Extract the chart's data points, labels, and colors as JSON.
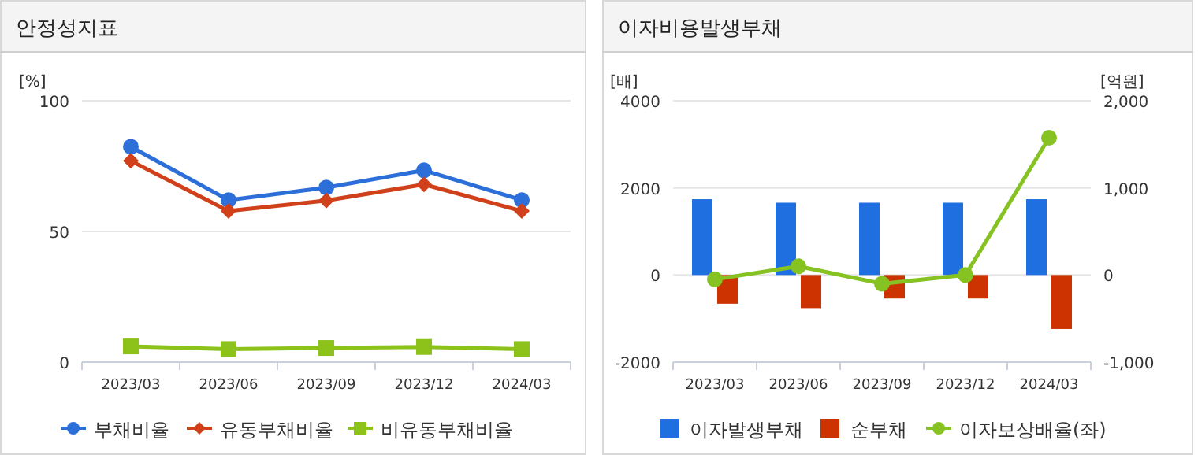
{
  "chart_data": [
    {
      "type": "line",
      "title": "안정성지표",
      "ylabel": "[%]",
      "categories": [
        "2023/03",
        "2023/06",
        "2023/09",
        "2023/12",
        "2024/03"
      ],
      "ylim": [
        0,
        100
      ],
      "yticks": [
        0,
        50,
        100
      ],
      "grid": "y",
      "legend": "bottom",
      "series": [
        {
          "name": "부채비율",
          "color": "#2d6fd9",
          "marker": "circle",
          "values": [
            82.4,
            62,
            66.8,
            73.4,
            62
          ]
        },
        {
          "name": "유동부채비율",
          "color": "#d0401a",
          "marker": "diamond",
          "values": [
            77,
            57.8,
            61.8,
            68,
            57.8
          ]
        },
        {
          "name": "비유동부채비율",
          "color": "#8cc21a",
          "marker": "square",
          "values": [
            6,
            5,
            5.4,
            5.8,
            5
          ]
        }
      ]
    },
    {
      "type": "bar",
      "title": "이자비용발생부채",
      "ylabel": "[배]",
      "y2label": "[억원]",
      "categories": [
        "2023/03",
        "2023/06",
        "2023/09",
        "2023/12",
        "2024/03"
      ],
      "ylim": [
        -2000,
        4000
      ],
      "yticks": [
        -2000,
        0,
        2000,
        4000
      ],
      "y2lim": [
        -1000,
        2000
      ],
      "y2ticks": [
        {
          "value": -1000,
          "label": "-1,000"
        },
        0,
        {
          "value": 1000,
          "label": "1,000"
        },
        {
          "value": 2000,
          "label": "2,000"
        }
      ],
      "grid": "y",
      "legend": "bottom",
      "series": [
        {
          "name": "이자발생부채",
          "type": "bar",
          "axis": "y2",
          "color": "#1f6fe0",
          "values": [
            870,
            830,
            830,
            830,
            870
          ]
        },
        {
          "name": "순부채",
          "type": "bar",
          "axis": "y2",
          "color": "#cc3300",
          "values": [
            -330,
            -380,
            -270,
            -270,
            -620
          ]
        },
        {
          "name": "이자보상배율(좌)",
          "type": "line",
          "marker": "circle",
          "color": "#86c322",
          "values": [
            -100,
            200,
            -200,
            0,
            3150
          ]
        }
      ]
    }
  ]
}
